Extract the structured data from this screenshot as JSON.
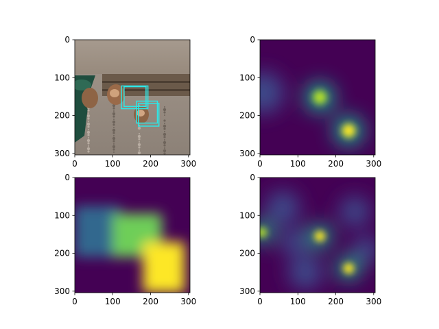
{
  "figure": {
    "background": "#ffffff"
  },
  "chart_data": [
    {
      "type": "heatmap",
      "content": "photo",
      "description_visible": "RGB photo of two quails on gravel next to a wooden wall, with cyan detection boxes",
      "xlim": [
        0,
        304
      ],
      "ylim": [
        304,
        0
      ],
      "xticks": [
        "0",
        "100",
        "200",
        "300"
      ],
      "yticks": [
        "0",
        "100",
        "200",
        "300"
      ],
      "boxes": [
        {
          "x0": 123,
          "y0": 122,
          "x1": 193,
          "y1": 182,
          "color": "#2ee6e6"
        },
        {
          "x0": 130,
          "y0": 124,
          "x1": 188,
          "y1": 176,
          "color": "#2ee6e6"
        },
        {
          "x0": 163,
          "y0": 162,
          "x1": 218,
          "y1": 220,
          "color": "#2ee6e6"
        },
        {
          "x0": 168,
          "y0": 168,
          "x1": 222,
          "y1": 228,
          "color": "#2ee6e6"
        }
      ]
    },
    {
      "type": "heatmap",
      "colormap": "viridis",
      "xlim": [
        0,
        304
      ],
      "ylim": [
        304,
        0
      ],
      "xticks": [
        "0",
        "100",
        "200",
        "300"
      ],
      "yticks": [
        "0",
        "100",
        "200",
        "300"
      ],
      "blobs": [
        {
          "cx": 158,
          "cy": 152,
          "r": 40,
          "v": 0.85
        },
        {
          "cx": 234,
          "cy": 240,
          "r": 40,
          "v": 0.95
        },
        {
          "cx": 8,
          "cy": 140,
          "r": 55,
          "v": 0.3
        }
      ]
    },
    {
      "type": "heatmap",
      "colormap": "viridis",
      "xlim": [
        0,
        304
      ],
      "ylim": [
        304,
        0
      ],
      "xticks": [
        "0",
        "100",
        "200",
        "300"
      ],
      "yticks": [
        "0",
        "100",
        "200",
        "300"
      ],
      "regions": [
        {
          "x0": 0,
          "y0": 75,
          "x1": 120,
          "y1": 210,
          "v": 0.38
        },
        {
          "x0": 100,
          "y0": 95,
          "x1": 230,
          "y1": 210,
          "v": 0.8
        },
        {
          "x0": 180,
          "y0": 170,
          "x1": 290,
          "y1": 304,
          "v": 0.95
        }
      ]
    },
    {
      "type": "heatmap",
      "colormap": "viridis",
      "xlim": [
        0,
        304
      ],
      "ylim": [
        304,
        0
      ],
      "xticks": [
        "0",
        "100",
        "200",
        "300"
      ],
      "yticks": [
        "0",
        "100",
        "200",
        "300"
      ],
      "blobs": [
        {
          "cx": 158,
          "cy": 155,
          "r": 32,
          "v": 0.95
        },
        {
          "cx": 234,
          "cy": 240,
          "r": 32,
          "v": 0.95
        },
        {
          "cx": 5,
          "cy": 145,
          "r": 30,
          "v": 0.85
        },
        {
          "cx": 60,
          "cy": 80,
          "r": 45,
          "v": 0.3
        },
        {
          "cx": 250,
          "cy": 90,
          "r": 40,
          "v": 0.35
        },
        {
          "cx": 120,
          "cy": 250,
          "r": 45,
          "v": 0.3
        },
        {
          "cx": 280,
          "cy": 190,
          "r": 35,
          "v": 0.3
        },
        {
          "cx": 90,
          "cy": 170,
          "r": 35,
          "v": 0.28
        }
      ]
    }
  ]
}
